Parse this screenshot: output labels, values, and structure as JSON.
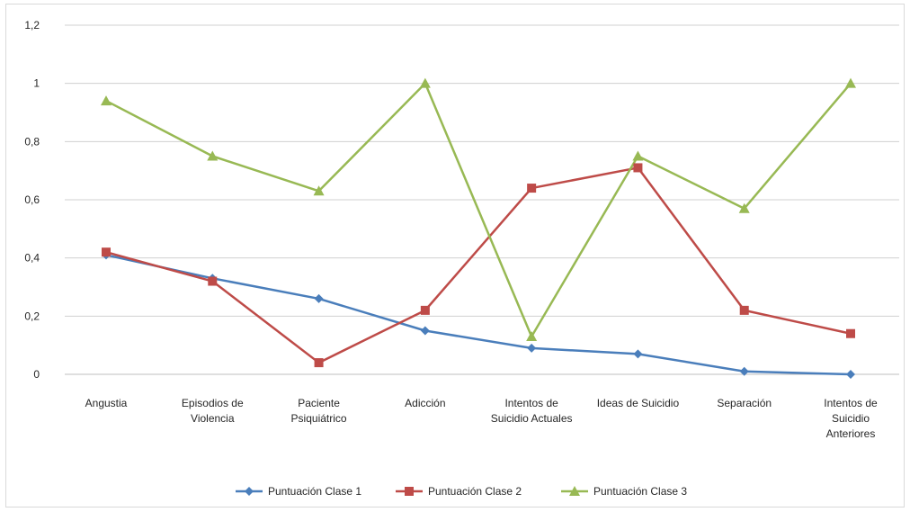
{
  "chart_data": {
    "type": "line",
    "title": "",
    "xlabel": "",
    "ylabel": "",
    "ylim": [
      0,
      1.2
    ],
    "yticks": [
      "0",
      "0,2",
      "0,4",
      "0,6",
      "0,8",
      "1",
      "1,2"
    ],
    "ytick_values": [
      0,
      0.2,
      0.4,
      0.6,
      0.8,
      1.0,
      1.2
    ],
    "grid": true,
    "legend_position": "bottom",
    "categories": [
      [
        "Angustia"
      ],
      [
        "Episodios de",
        "Violencia"
      ],
      [
        "Paciente",
        "Psiquiátrico"
      ],
      [
        "Adicción"
      ],
      [
        "Intentos de",
        "Suicidio Actuales"
      ],
      [
        "Ideas de Suicidio"
      ],
      [
        "Separación"
      ],
      [
        "Intentos de",
        "Suicidio",
        "Anteriores"
      ]
    ],
    "series": [
      {
        "name": "Puntuación Clase 1",
        "color": "#4a7ebb",
        "marker": "diamond",
        "values": [
          0.41,
          0.33,
          0.26,
          0.15,
          0.09,
          0.07,
          0.01,
          0.0
        ]
      },
      {
        "name": "Puntuación Clase 2",
        "color": "#be4b48",
        "marker": "square",
        "values": [
          0.42,
          0.32,
          0.04,
          0.22,
          0.64,
          0.71,
          0.22,
          0.14
        ]
      },
      {
        "name": "Puntuación Clase 3",
        "color": "#98b954",
        "marker": "triangle",
        "values": [
          0.94,
          0.75,
          0.63,
          1.0,
          0.13,
          0.75,
          0.57,
          1.0
        ]
      }
    ]
  }
}
